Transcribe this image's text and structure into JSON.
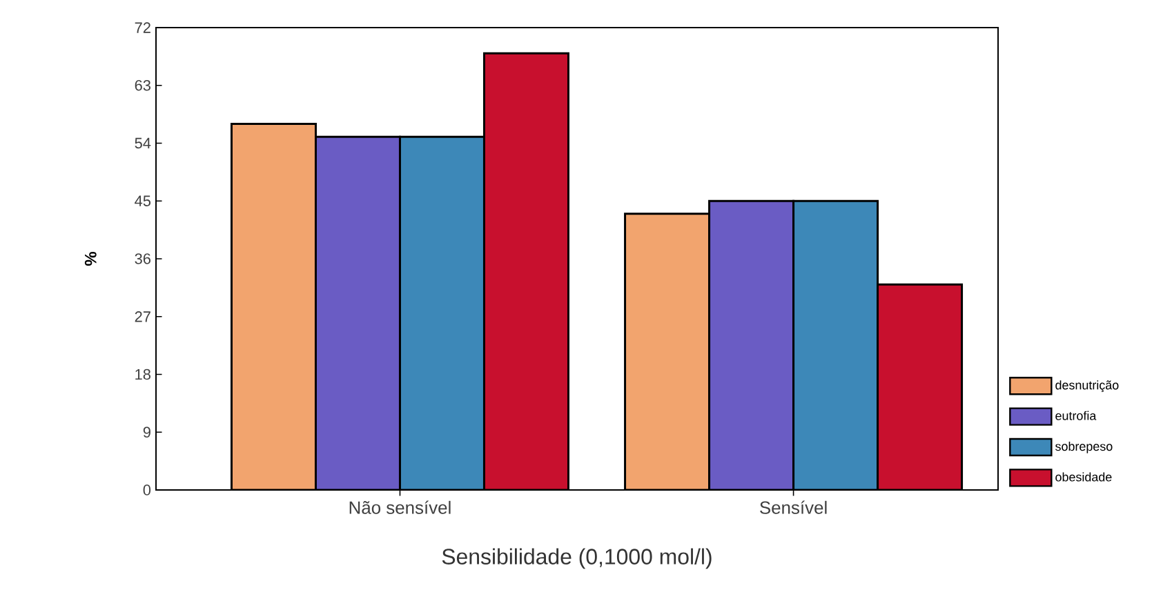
{
  "chart_data": {
    "type": "bar",
    "xlabel": "Sensibilidade (0,1000 mol/l)",
    "ylabel": "%",
    "categories": [
      "Não sensível",
      "Sensível"
    ],
    "series": [
      {
        "name": "desnutrição",
        "color": "#f2a46e",
        "values": [
          57,
          43
        ]
      },
      {
        "name": "eutrofia",
        "color": "#6a5cc4",
        "values": [
          55,
          45
        ]
      },
      {
        "name": "sobrepeso",
        "color": "#3d88b8",
        "values": [
          55,
          45
        ]
      },
      {
        "name": "obesidade",
        "color": "#c8102e",
        "values": [
          68,
          32
        ]
      }
    ],
    "ylim": [
      0,
      72
    ],
    "yticks": [
      0,
      9,
      18,
      27,
      36,
      45,
      54,
      63,
      72
    ],
    "legend": "right"
  }
}
